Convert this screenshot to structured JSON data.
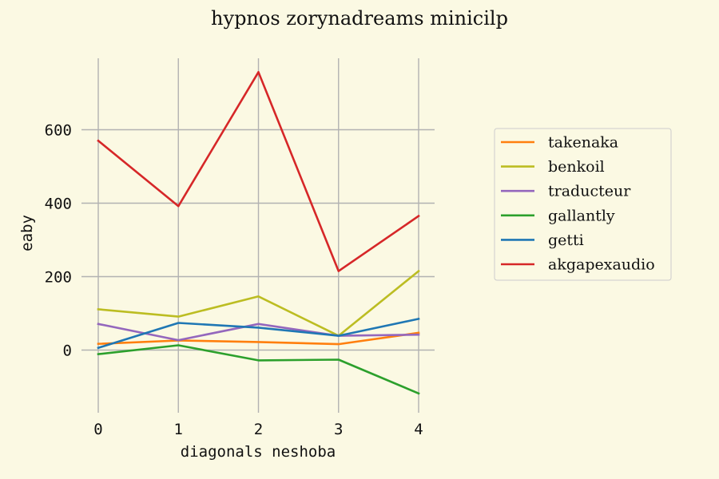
{
  "chart_data": {
    "type": "line",
    "title": "hypnos zorynadreams minicilp",
    "xlabel": "diagonals neshoba",
    "ylabel": "eaby",
    "x": [
      0,
      1,
      2,
      3,
      4
    ],
    "x_ticks": [
      "0",
      "1",
      "2",
      "3",
      "4"
    ],
    "xlim": [
      0,
      4
    ],
    "y_ticks": [
      "0",
      "200",
      "400",
      "600"
    ],
    "y_tick_values": [
      0,
      200,
      400,
      600
    ],
    "ylim": [
      -150,
      790
    ],
    "grid": true,
    "legend_position": "right",
    "series": [
      {
        "name": "takenaka",
        "color": "#ff7f0e",
        "values": [
          17,
          26,
          22,
          16,
          47
        ]
      },
      {
        "name": "benkoil",
        "color": "#bcbd22",
        "values": [
          111,
          91,
          146,
          39,
          215
        ]
      },
      {
        "name": "traducteur",
        "color": "#9467bd",
        "values": [
          71,
          27,
          71,
          39,
          42
        ]
      },
      {
        "name": "gallantly",
        "color": "#2ca02c",
        "values": [
          -11,
          13,
          -28,
          -26,
          -118
        ]
      },
      {
        "name": "getti",
        "color": "#1f77b4",
        "values": [
          6,
          74,
          61,
          39,
          85
        ]
      },
      {
        "name": "akgapexaudio",
        "color": "#d62728",
        "values": [
          570,
          392,
          757,
          215,
          365
        ]
      }
    ]
  }
}
